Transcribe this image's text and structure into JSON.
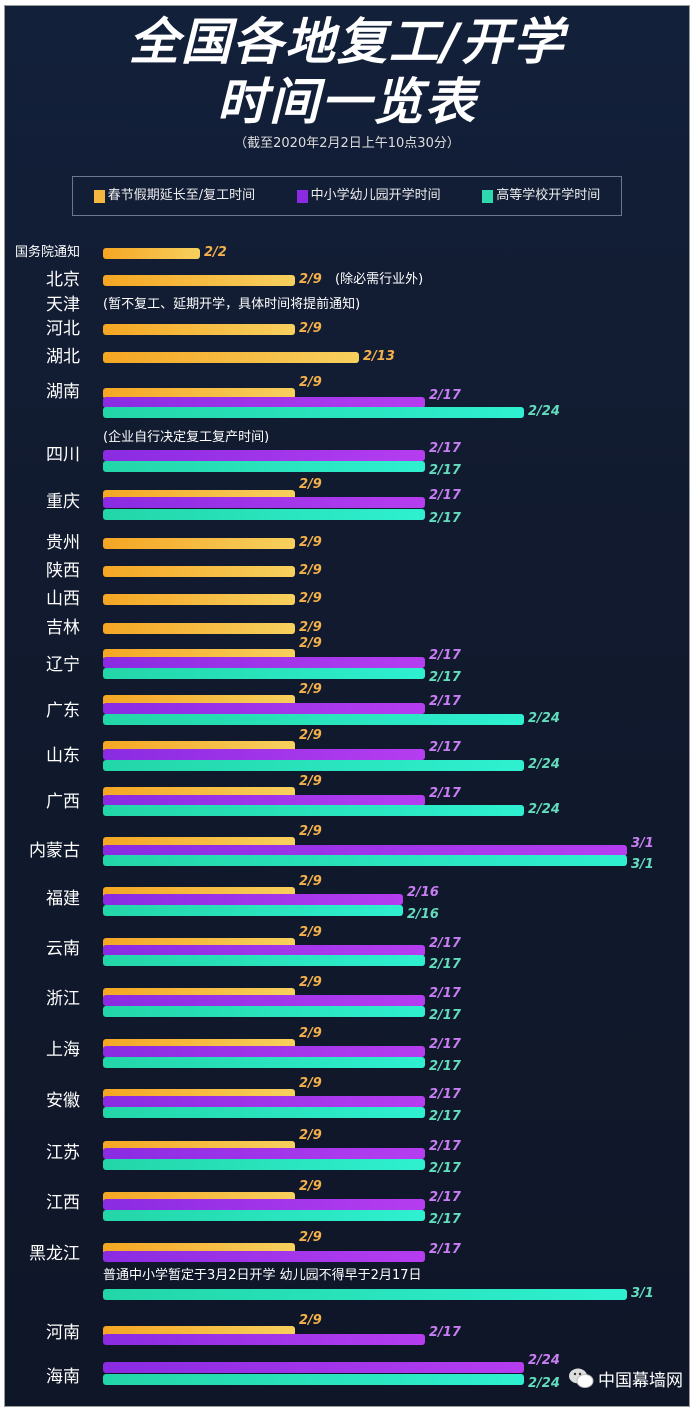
{
  "chart_data": {
    "type": "bar",
    "title_line1": "全国各地复工/开学",
    "title_line2": "时间一览表",
    "subtitle": "（截至2020年2月2日上午10点30分）",
    "legend": [
      "春节假期延长至/复工时间",
      "中小学幼儿园开学时间",
      "高等学校开学时间"
    ],
    "colors": [
      "#f5a623",
      "#9b30e8",
      "#26e0b8"
    ],
    "rows": [
      {
        "name": "国务院通知",
        "values": [
          "2/2",
          null,
          null
        ]
      },
      {
        "name": "北京",
        "values": [
          "2/9",
          null,
          null
        ],
        "note": "(除必需行业外)"
      },
      {
        "name": "天津",
        "values": [
          null,
          null,
          null
        ],
        "note": "(暂不复工、延期开学，具体时间将提前通知)"
      },
      {
        "name": "河北",
        "values": [
          "2/9",
          null,
          null
        ]
      },
      {
        "name": "湖北",
        "values": [
          "2/13",
          null,
          null
        ]
      },
      {
        "name": "湖南",
        "values": [
          "2/9",
          "2/17",
          "2/24"
        ]
      },
      {
        "name": "四川",
        "values": [
          null,
          "2/17",
          "2/17"
        ],
        "note": "(企业自行决定复工复产时间)"
      },
      {
        "name": "重庆",
        "values": [
          "2/9",
          "2/17",
          "2/17"
        ]
      },
      {
        "name": "贵州",
        "values": [
          "2/9",
          null,
          null
        ]
      },
      {
        "name": "陕西",
        "values": [
          "2/9",
          null,
          null
        ]
      },
      {
        "name": "山西",
        "values": [
          "2/9",
          null,
          null
        ]
      },
      {
        "name": "吉林",
        "values": [
          "2/9",
          null,
          null
        ]
      },
      {
        "name": "辽宁",
        "values": [
          "2/9",
          "2/17",
          "2/17"
        ]
      },
      {
        "name": "广东",
        "values": [
          "2/9",
          "2/17",
          "2/24"
        ]
      },
      {
        "name": "山东",
        "values": [
          "2/9",
          "2/17",
          "2/24"
        ]
      },
      {
        "name": "广西",
        "values": [
          "2/9",
          "2/17",
          "2/24"
        ]
      },
      {
        "name": "内蒙古",
        "values": [
          "2/9",
          "3/1",
          "3/1"
        ]
      },
      {
        "name": "福建",
        "values": [
          "2/9",
          "2/16",
          "2/16"
        ]
      },
      {
        "name": "云南",
        "values": [
          "2/9",
          "2/17",
          "2/17"
        ]
      },
      {
        "name": "浙江",
        "values": [
          "2/9",
          "2/17",
          "2/17"
        ]
      },
      {
        "name": "上海",
        "values": [
          "2/9",
          "2/17",
          "2/17"
        ]
      },
      {
        "name": "安徽",
        "values": [
          "2/9",
          "2/17",
          "2/17"
        ]
      },
      {
        "name": "江苏",
        "values": [
          "2/9",
          "2/17",
          "2/17"
        ]
      },
      {
        "name": "江西",
        "values": [
          "2/9",
          "2/17",
          "2/17"
        ]
      },
      {
        "name": "黑龙江",
        "values": [
          "2/9",
          "2/17",
          "3/1"
        ],
        "note": "普通中小学暂定于3月2日开学 幼儿园不得早于2月17日"
      },
      {
        "name": "河南",
        "values": [
          "2/9",
          "2/17",
          null
        ]
      },
      {
        "name": "海南",
        "values": [
          null,
          "2/24",
          "2/24"
        ]
      }
    ]
  },
  "watermark": "中国幕墙网"
}
